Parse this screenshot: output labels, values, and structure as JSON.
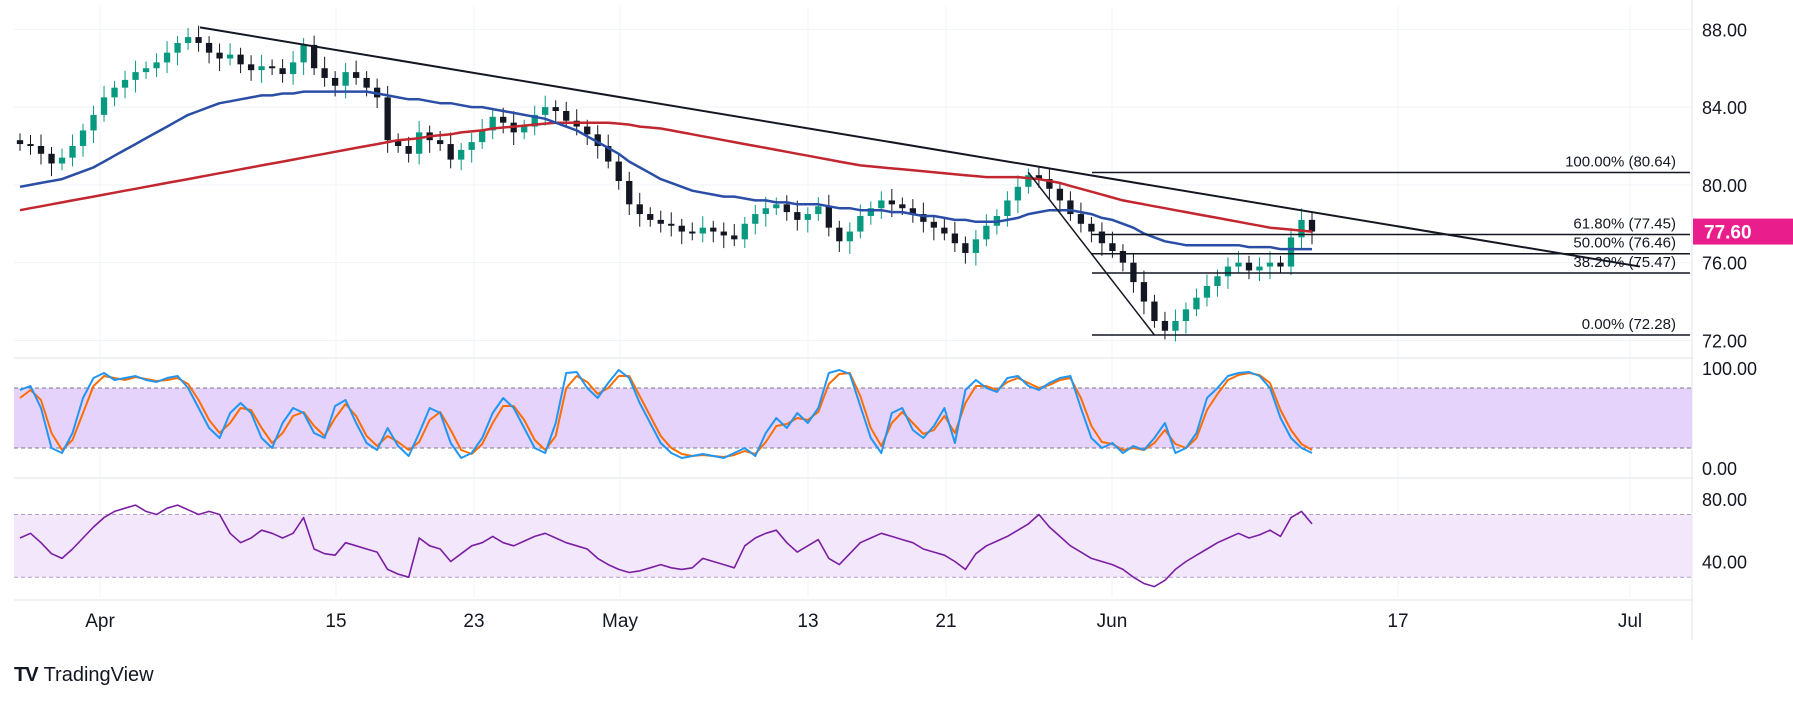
{
  "brand": {
    "logo": "TV",
    "name": "TradingView"
  },
  "colors": {
    "candle_up": "#089981",
    "candle_down": "#131722",
    "ma_fast": "#2a4ea6",
    "ma_slow": "#c2262e",
    "trendline": "#131722",
    "fib": "#131722",
    "stoch_k": "#2196f3",
    "stoch_d": "#ff6d00",
    "stoch_band": "#e6d3fb",
    "rsi": "#7b1fa2",
    "rsi_band": "#f3e7fc",
    "price_tag": "#e91e8c",
    "grid": "#f0f3fa",
    "axis_text": "#131722"
  },
  "chart_data": [
    {
      "type": "candlestick",
      "panel": "price",
      "x_axis_ticks": [
        "Apr",
        "15",
        "23",
        "May",
        "13",
        "21",
        "Jun",
        "17",
        "Jul"
      ],
      "y_ticks": [
        "88.00",
        "84.00",
        "80.00",
        "76.00",
        "72.00"
      ],
      "ylim": [
        71.2,
        89.2
      ],
      "current_price": "77.60",
      "series": [
        {
          "name": "Close",
          "values": [
            82.1,
            82.0,
            81.6,
            81.1,
            81.4,
            82.0,
            82.8,
            83.6,
            84.5,
            85.0,
            85.4,
            85.8,
            86.0,
            86.3,
            86.8,
            87.3,
            87.6,
            87.3,
            86.8,
            86.5,
            86.7,
            86.2,
            85.9,
            86.1,
            86.0,
            85.7,
            86.3,
            87.2,
            86.0,
            85.5,
            85.1,
            85.8,
            85.5,
            85.0,
            84.5,
            82.3,
            82.0,
            81.6,
            82.7,
            82.3,
            82.1,
            81.3,
            81.8,
            82.2,
            82.8,
            83.5,
            83.2,
            82.7,
            83.0,
            83.6,
            84.0,
            83.8,
            83.3,
            83.0,
            82.6,
            82.0,
            81.2,
            80.2,
            79.0,
            78.5,
            78.2,
            78.0,
            77.9,
            77.6,
            77.5,
            77.8,
            77.6,
            77.4,
            77.2,
            78.0,
            78.5,
            78.8,
            79.0,
            78.6,
            78.2,
            78.5,
            78.9,
            77.8,
            77.1,
            77.6,
            78.4,
            78.8,
            79.2,
            79.0,
            78.8,
            78.5,
            78.1,
            77.8,
            77.5,
            77.0,
            76.5,
            77.2,
            77.9,
            78.4,
            79.2,
            79.9,
            80.5,
            80.3,
            79.8,
            79.2,
            78.5,
            78.0,
            77.6,
            77.0,
            76.6,
            76.0,
            75.0,
            74.0,
            73.0,
            72.5,
            73.0,
            73.6,
            74.2,
            74.8,
            75.3,
            75.8,
            76.0,
            75.6,
            75.8,
            76.0,
            75.8,
            77.3,
            78.2,
            77.6
          ],
          "n_daily_candles": 124
        },
        {
          "name": "MA fast",
          "role": "ma_fast"
        },
        {
          "name": "MA slow",
          "role": "ma_slow"
        }
      ],
      "ma_fast_values": [
        79.9,
        80.0,
        80.1,
        80.2,
        80.3,
        80.5,
        80.7,
        80.9,
        81.2,
        81.5,
        81.8,
        82.1,
        82.4,
        82.7,
        83.0,
        83.3,
        83.6,
        83.8,
        84.0,
        84.2,
        84.3,
        84.4,
        84.5,
        84.6,
        84.6,
        84.7,
        84.7,
        84.8,
        84.8,
        84.8,
        84.8,
        84.8,
        84.8,
        84.8,
        84.7,
        84.6,
        84.5,
        84.4,
        84.4,
        84.3,
        84.2,
        84.2,
        84.1,
        84.0,
        84.0,
        83.9,
        83.8,
        83.7,
        83.6,
        83.5,
        83.4,
        83.2,
        83.0,
        82.8,
        82.5,
        82.2,
        81.9,
        81.6,
        81.2,
        80.9,
        80.6,
        80.3,
        80.1,
        79.9,
        79.7,
        79.6,
        79.5,
        79.4,
        79.4,
        79.3,
        79.2,
        79.2,
        79.1,
        79.1,
        79.0,
        79.0,
        79.0,
        78.9,
        78.8,
        78.8,
        78.7,
        78.7,
        78.7,
        78.6,
        78.6,
        78.5,
        78.4,
        78.4,
        78.3,
        78.2,
        78.2,
        78.1,
        78.1,
        78.1,
        78.2,
        78.3,
        78.5,
        78.6,
        78.7,
        78.7,
        78.7,
        78.6,
        78.5,
        78.3,
        78.2,
        78.0,
        77.8,
        77.5,
        77.3,
        77.1,
        77.0,
        76.9,
        76.9,
        76.9,
        76.9,
        76.9,
        76.9,
        76.8,
        76.8,
        76.8,
        76.7,
        76.7,
        76.7,
        76.7
      ],
      "ma_slow_values": [
        78.7,
        78.8,
        78.9,
        79.0,
        79.1,
        79.2,
        79.3,
        79.4,
        79.5,
        79.6,
        79.7,
        79.8,
        79.9,
        80.0,
        80.1,
        80.2,
        80.3,
        80.4,
        80.5,
        80.6,
        80.7,
        80.8,
        80.9,
        81.0,
        81.1,
        81.2,
        81.3,
        81.4,
        81.5,
        81.6,
        81.7,
        81.8,
        81.9,
        82.0,
        82.1,
        82.2,
        82.3,
        82.35,
        82.4,
        82.5,
        82.55,
        82.6,
        82.7,
        82.75,
        82.8,
        82.9,
        82.95,
        83.0,
        83.05,
        83.1,
        83.15,
        83.2,
        83.2,
        83.2,
        83.2,
        83.2,
        83.2,
        83.15,
        83.1,
        83.0,
        82.95,
        82.9,
        82.8,
        82.7,
        82.6,
        82.5,
        82.4,
        82.3,
        82.2,
        82.1,
        82.0,
        81.9,
        81.8,
        81.7,
        81.6,
        81.5,
        81.4,
        81.3,
        81.2,
        81.1,
        81.0,
        80.95,
        80.9,
        80.85,
        80.8,
        80.75,
        80.7,
        80.65,
        80.6,
        80.55,
        80.5,
        80.45,
        80.4,
        80.4,
        80.4,
        80.4,
        80.35,
        80.3,
        80.2,
        80.1,
        79.95,
        79.8,
        79.65,
        79.5,
        79.35,
        79.2,
        79.1,
        79.0,
        78.9,
        78.8,
        78.7,
        78.6,
        78.5,
        78.4,
        78.3,
        78.2,
        78.1,
        78.0,
        77.9,
        77.8,
        77.75,
        77.7,
        77.65,
        77.6
      ],
      "trendline": {
        "from_price": 88.1,
        "to_price": 75.8
      },
      "fibonacci": [
        {
          "label": "100.00% (80.64)",
          "price": 80.64
        },
        {
          "label": "61.80% (77.45)",
          "price": 77.45
        },
        {
          "label": "50.00% (76.46)",
          "price": 76.46
        },
        {
          "label": "38.20% (75.47)",
          "price": 75.47
        },
        {
          "label": "0.00% (72.28)",
          "price": 72.28
        }
      ]
    },
    {
      "type": "line",
      "panel": "stochastic",
      "y_ticks": [
        "100.00",
        "0.00"
      ],
      "ylim": [
        -8,
        108
      ],
      "band": [
        20,
        80
      ],
      "series": [
        {
          "name": "%K",
          "values": [
            78,
            82,
            60,
            20,
            15,
            35,
            70,
            90,
            95,
            88,
            90,
            92,
            88,
            86,
            90,
            92,
            80,
            60,
            40,
            30,
            55,
            65,
            55,
            30,
            20,
            45,
            60,
            55,
            35,
            30,
            62,
            68,
            45,
            25,
            18,
            40,
            22,
            12,
            35,
            60,
            55,
            25,
            10,
            15,
            30,
            55,
            70,
            60,
            40,
            20,
            15,
            45,
            95,
            96,
            80,
            70,
            85,
            98,
            90,
            65,
            45,
            25,
            15,
            10,
            12,
            14,
            12,
            10,
            15,
            20,
            12,
            35,
            50,
            40,
            55,
            45,
            60,
            95,
            98,
            94,
            62,
            30,
            15,
            55,
            60,
            38,
            30,
            42,
            60,
            25,
            78,
            88,
            80,
            76,
            90,
            92,
            82,
            78,
            85,
            90,
            92,
            60,
            30,
            20,
            25,
            15,
            22,
            18,
            30,
            45,
            15,
            20,
            35,
            70,
            80,
            92,
            95,
            96,
            92,
            80,
            50,
            30,
            20,
            15
          ]
        },
        {
          "name": "%D",
          "values": [
            70,
            78,
            68,
            35,
            18,
            28,
            55,
            82,
            92,
            90,
            88,
            91,
            89,
            87,
            88,
            90,
            84,
            68,
            48,
            35,
            45,
            60,
            58,
            40,
            25,
            35,
            52,
            56,
            42,
            32,
            50,
            64,
            52,
            32,
            22,
            32,
            26,
            18,
            26,
            48,
            56,
            38,
            18,
            14,
            24,
            45,
            62,
            62,
            48,
            28,
            18,
            32,
            80,
            92,
            86,
            74,
            80,
            92,
            92,
            72,
            52,
            32,
            20,
            14,
            12,
            13,
            12,
            11,
            13,
            17,
            14,
            26,
            42,
            44,
            50,
            48,
            56,
            84,
            94,
            95,
            72,
            40,
            22,
            45,
            56,
            45,
            34,
            38,
            52,
            35,
            65,
            82,
            82,
            78,
            86,
            90,
            85,
            80,
            83,
            88,
            90,
            70,
            42,
            26,
            24,
            18,
            20,
            18,
            25,
            38,
            24,
            20,
            30,
            58,
            74,
            88,
            93,
            95,
            93,
            85,
            58,
            38,
            24,
            18
          ]
        }
      ]
    },
    {
      "type": "line",
      "panel": "rsi",
      "y_ticks": [
        "80.00",
        "40.00"
      ],
      "ylim": [
        18,
        92
      ],
      "band": [
        30,
        70
      ],
      "series": [
        {
          "name": "RSI",
          "values": [
            55,
            58,
            52,
            45,
            42,
            48,
            55,
            62,
            68,
            72,
            74,
            76,
            72,
            70,
            74,
            76,
            73,
            70,
            72,
            70,
            58,
            52,
            55,
            60,
            58,
            55,
            58,
            68,
            48,
            45,
            44,
            52,
            50,
            48,
            46,
            35,
            32,
            30,
            55,
            50,
            48,
            40,
            45,
            50,
            52,
            56,
            52,
            50,
            53,
            56,
            58,
            55,
            52,
            50,
            48,
            42,
            38,
            35,
            33,
            34,
            36,
            38,
            36,
            35,
            36,
            42,
            40,
            38,
            36,
            50,
            55,
            58,
            60,
            52,
            46,
            50,
            54,
            42,
            38,
            45,
            52,
            55,
            58,
            56,
            54,
            52,
            48,
            46,
            44,
            40,
            35,
            45,
            50,
            53,
            56,
            60,
            64,
            70,
            62,
            56,
            50,
            46,
            42,
            40,
            38,
            35,
            30,
            26,
            24,
            28,
            35,
            40,
            44,
            48,
            52,
            55,
            58,
            55,
            57,
            60,
            56,
            68,
            72,
            64
          ]
        }
      ]
    }
  ]
}
